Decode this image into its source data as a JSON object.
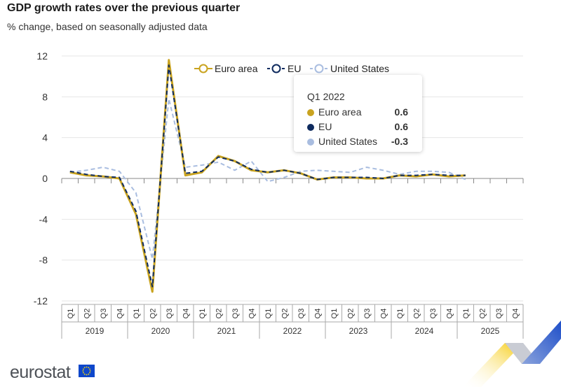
{
  "header": {
    "title": "GDP growth rates over the previous quarter",
    "subtitle": "% change, based on seasonally adjusted data"
  },
  "footer": {
    "brand": "eurostat"
  },
  "colors": {
    "euro_area": "#c9a31f",
    "eu": "#0e2a5e",
    "united_states": "#a9bde0",
    "grid": "#e6e6e6",
    "axis": "#aaaaaa"
  },
  "tooltip": {
    "period": "Q1 2022",
    "rows": [
      {
        "name": "Euro area",
        "value": "0.6",
        "color": "#c9a31f"
      },
      {
        "name": "EU",
        "value": "0.6",
        "color": "#0e2a5e"
      },
      {
        "name": "United States",
        "value": "-0.3",
        "color": "#a9bde0"
      }
    ]
  },
  "chart_data": {
    "type": "line",
    "title": "GDP growth rates over the previous quarter",
    "subtitle": "% change, based on seasonally adjusted data",
    "ylim": [
      -12,
      12
    ],
    "yticks": [
      12,
      8,
      4,
      0,
      -4,
      -8,
      -12
    ],
    "grid": true,
    "legend_position": "top",
    "x": [
      "Q1 2019",
      "Q2 2019",
      "Q3 2019",
      "Q4 2019",
      "Q1 2020",
      "Q2 2020",
      "Q3 2020",
      "Q4 2020",
      "Q1 2021",
      "Q2 2021",
      "Q3 2021",
      "Q4 2021",
      "Q1 2022",
      "Q2 2022",
      "Q3 2022",
      "Q4 2022",
      "Q1 2023",
      "Q2 2023",
      "Q3 2023",
      "Q4 2023",
      "Q1 2024",
      "Q2 2024",
      "Q3 2024",
      "Q4 2024",
      "Q1 2025",
      "Q2 2025",
      "Q3 2025",
      "Q4 2025"
    ],
    "quarter_labels": [
      "Q1",
      "Q2",
      "Q3",
      "Q4"
    ],
    "years": [
      "2019",
      "2020",
      "2021",
      "2022",
      "2023",
      "2024",
      "2025"
    ],
    "series": [
      {
        "name": "Euro area",
        "color": "#c9a31f",
        "dash": "solid",
        "values": [
          0.6,
          0.3,
          0.2,
          0.0,
          -3.5,
          -11.1,
          11.6,
          0.3,
          0.6,
          2.2,
          1.7,
          0.8,
          0.6,
          0.8,
          0.5,
          -0.1,
          0.1,
          0.1,
          0.0,
          0.0,
          0.3,
          0.2,
          0.4,
          0.2,
          0.3,
          null,
          null,
          null
        ]
      },
      {
        "name": "EU",
        "color": "#0e2a5e",
        "dash": "dashed",
        "values": [
          0.7,
          0.4,
          0.2,
          0.1,
          -3.2,
          -10.6,
          11.1,
          0.5,
          0.7,
          2.1,
          1.7,
          0.9,
          0.6,
          0.8,
          0.5,
          -0.1,
          0.1,
          0.1,
          0.1,
          0.0,
          0.3,
          0.3,
          0.4,
          0.3,
          0.3,
          null,
          null,
          null
        ]
      },
      {
        "name": "United States",
        "color": "#a9bde0",
        "dash": "dashed",
        "values": [
          0.6,
          0.8,
          1.1,
          0.7,
          -1.4,
          -7.9,
          7.8,
          1.1,
          1.3,
          1.6,
          0.8,
          1.7,
          -0.3,
          0.1,
          0.7,
          0.8,
          0.7,
          0.6,
          1.1,
          0.8,
          0.4,
          0.7,
          0.7,
          0.6,
          -0.1,
          null,
          null,
          null
        ]
      }
    ]
  }
}
